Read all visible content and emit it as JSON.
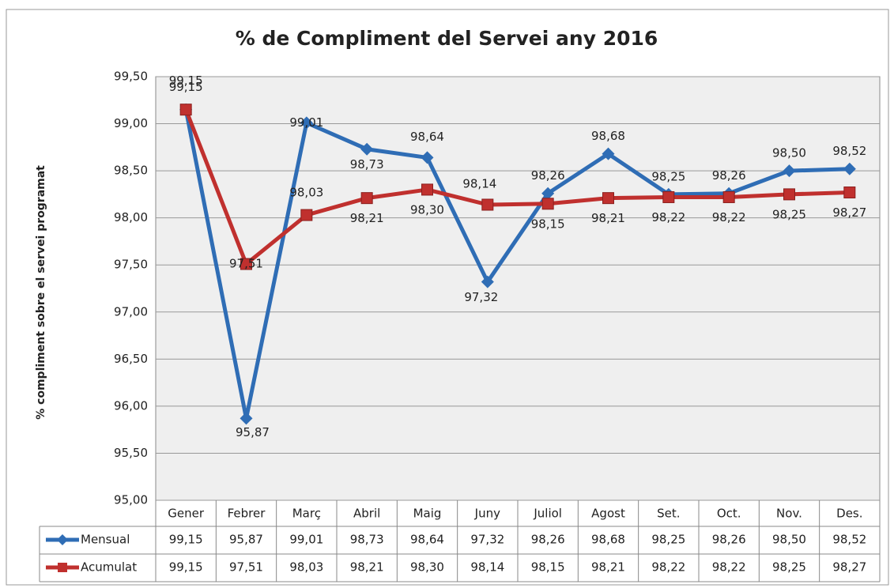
{
  "chart_data": {
    "type": "line",
    "title": "% de Compliment del Servei any 2016",
    "y_label": "% compliment sobre el servei programat",
    "categories": [
      "Gener",
      "Febrer",
      "Març",
      "Abril",
      "Maig",
      "Juny",
      "Juliol",
      "Agost",
      "Set.",
      "Oct.",
      "Nov.",
      "Des."
    ],
    "series": [
      {
        "name": "Mensual",
        "color": "#2f6db5",
        "values": [
          99.15,
          95.87,
          99.01,
          98.73,
          98.64,
          97.32,
          98.26,
          98.68,
          98.25,
          98.26,
          98.5,
          98.52
        ],
        "value_labels": [
          "99,15",
          "95,87",
          "99,01",
          "98,73",
          "98,64",
          "97,32",
          "98,26",
          "98,68",
          "98,25",
          "98,26",
          "98,50",
          "98,52"
        ]
      },
      {
        "name": "Acumulat",
        "color": "#c0302e",
        "values": [
          99.15,
          97.51,
          98.03,
          98.21,
          98.3,
          98.14,
          98.15,
          98.21,
          98.22,
          98.22,
          98.25,
          98.27
        ],
        "value_labels": [
          "99,15",
          "97,51",
          "98,03",
          "98,21",
          "98,30",
          "98,14",
          "98,15",
          "98,21",
          "98,22",
          "98,22",
          "98,25",
          "98,27"
        ]
      }
    ],
    "ylim": [
      95,
      99.5
    ],
    "yticks": [
      {
        "value": 95,
        "label": "95,00"
      },
      {
        "value": 95.5,
        "label": "95,50"
      },
      {
        "value": 96,
        "label": "96,00"
      },
      {
        "value": 96.5,
        "label": "96,50"
      },
      {
        "value": 97,
        "label": "97,00"
      },
      {
        "value": 97.5,
        "label": "97,50"
      },
      {
        "value": 98,
        "label": "98,00"
      },
      {
        "value": 98.5,
        "label": "98,50"
      },
      {
        "value": 99,
        "label": "99,00"
      },
      {
        "value": 99.5,
        "label": "99,50"
      }
    ],
    "grid": true
  }
}
